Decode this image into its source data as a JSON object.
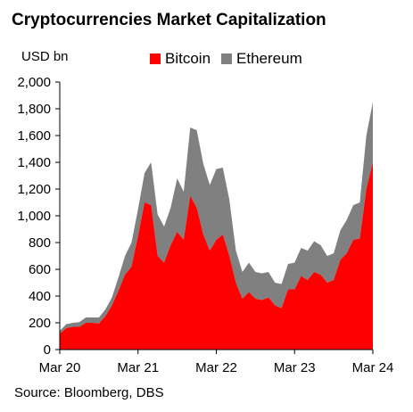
{
  "title": "Cryptocurrencies Market Capitalization",
  "source": "Source: Bloomberg, DBS",
  "colors": {
    "bitcoin": "#ff0000",
    "ethereum": "#808080"
  },
  "chart_data": {
    "type": "area",
    "stacked": true,
    "title": "Cryptocurrencies Market Capitalization",
    "ylabel": "USD bn",
    "xlabel": "",
    "ylim": [
      0,
      2000
    ],
    "y_ticks": [
      "0",
      "200",
      "400",
      "600",
      "800",
      "1,000",
      "1,200",
      "1,400",
      "1,600",
      "1,800",
      "2,000"
    ],
    "x_ticks": [
      "Mar 20",
      "Mar 21",
      "Mar 22",
      "Mar 23",
      "Mar 24"
    ],
    "legend_position": "top",
    "grid": false,
    "x": [
      "Mar 20",
      "Apr 20",
      "May 20",
      "Jun 20",
      "Jul 20",
      "Aug 20",
      "Sep 20",
      "Oct 20",
      "Nov 20",
      "Dec 20",
      "Jan 21",
      "Feb 21",
      "Mar 21",
      "Apr 21",
      "May 21",
      "Jun 21",
      "Jul 21",
      "Aug 21",
      "Sep 21",
      "Oct 21",
      "Nov 21",
      "Dec 21",
      "Jan 22",
      "Feb 22",
      "Mar 22",
      "Apr 22",
      "May 22",
      "Jun 22",
      "Jul 22",
      "Aug 22",
      "Sep 22",
      "Oct 22",
      "Nov 22",
      "Dec 22",
      "Jan 23",
      "Feb 23",
      "Mar 23",
      "Apr 23",
      "May 23",
      "Jun 23",
      "Jul 23",
      "Aug 23",
      "Sep 23",
      "Oct 23",
      "Nov 23",
      "Dec 23",
      "Jan 24",
      "Feb 24",
      "Mar 24"
    ],
    "series": [
      {
        "name": "Bitcoin",
        "values": [
          120,
          160,
          170,
          170,
          200,
          200,
          195,
          250,
          330,
          440,
          560,
          620,
          850,
          1100,
          1080,
          700,
          650,
          780,
          880,
          820,
          1150,
          1060,
          860,
          740,
          820,
          860,
          700,
          500,
          380,
          430,
          380,
          370,
          390,
          330,
          310,
          450,
          450,
          550,
          520,
          580,
          560,
          500,
          520,
          670,
          720,
          820,
          830,
          1200,
          1400
        ]
      },
      {
        "name": "Ethereum",
        "values": [
          20,
          30,
          30,
          35,
          40,
          40,
          45,
          50,
          60,
          100,
          140,
          180,
          200,
          220,
          320,
          310,
          270,
          280,
          400,
          360,
          510,
          580,
          530,
          490,
          530,
          500,
          420,
          240,
          200,
          220,
          200,
          200,
          190,
          170,
          180,
          190,
          200,
          210,
          220,
          230,
          220,
          200,
          200,
          220,
          250,
          260,
          270,
          400,
          450
        ]
      }
    ]
  }
}
